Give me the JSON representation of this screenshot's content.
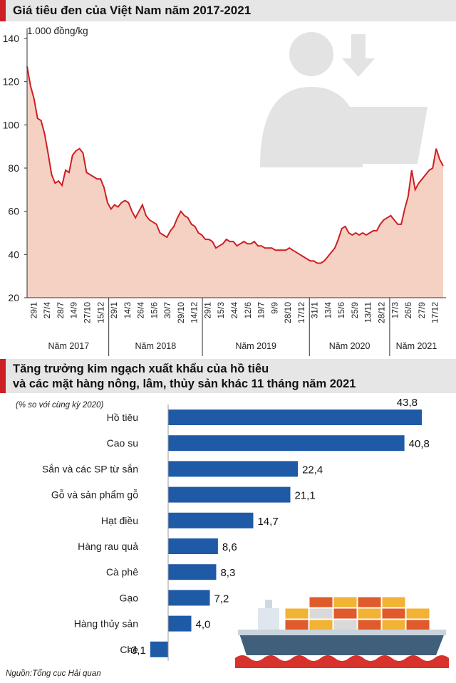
{
  "chart_data": [
    {
      "type": "area",
      "title": "Giá tiêu đen của Việt Nam năm 2017-2021",
      "ylabel": "1.000 đồng/kg",
      "ylim": [
        20,
        140
      ],
      "yticks": [
        20,
        40,
        60,
        80,
        100,
        120,
        140
      ],
      "grid": false,
      "x_tick_labels": [
        "29/1",
        "27/4",
        "28/7",
        "14/9",
        "27/10",
        "15/12",
        "29/1",
        "14/3",
        "26/4",
        "15/6",
        "30/7",
        "29/10",
        "14/12",
        "29/1",
        "15/3",
        "24/4",
        "12/6",
        "19/7",
        "9/9",
        "28/10",
        "17/12",
        "31/1",
        "13/4",
        "15/6",
        "25/9",
        "13/11",
        "28/12",
        "17/3",
        "26/6",
        "27/9",
        "17/12"
      ],
      "years": [
        "Năm 2017",
        "Năm 2018",
        "Năm 2019",
        "Năm 2020",
        "Năm 2021"
      ],
      "values": [
        127,
        118,
        112,
        103,
        102,
        96,
        87,
        77,
        73,
        74,
        72,
        79,
        78,
        86,
        88,
        89,
        87,
        78,
        77,
        76,
        75,
        75,
        71,
        64,
        61,
        63,
        62,
        64,
        65,
        64,
        60,
        57,
        60,
        63,
        58,
        56,
        55,
        54,
        50,
        49,
        48,
        51,
        53,
        57,
        60,
        58,
        57,
        54,
        53,
        50,
        49,
        47,
        47,
        46,
        43,
        44,
        45,
        47,
        46,
        46,
        44,
        45,
        46,
        45,
        45,
        46,
        44,
        44,
        43,
        43,
        43,
        42,
        42,
        42,
        42,
        43,
        42,
        41,
        40,
        39,
        38,
        37,
        37,
        36,
        36,
        37,
        39,
        41,
        43,
        47,
        52,
        53,
        50,
        49,
        50,
        49,
        50,
        49,
        50,
        51,
        51,
        54,
        56,
        57,
        58,
        56,
        54,
        54,
        61,
        67,
        79,
        70,
        73,
        75,
        77,
        79,
        80,
        89,
        84,
        81
      ]
    },
    {
      "type": "bar",
      "title": "Tăng trưởng kim ngạch xuất khẩu của hồ tiêu và các mặt hàng nông, lâm, thủy sản khác 11 tháng năm 2021",
      "title_lines": [
        "Tăng trưởng kim ngạch xuất khẩu của hồ tiêu",
        "và các mặt hàng nông, lâm, thủy sản khác 11 tháng năm 2021"
      ],
      "subtitle": "(% so với cùng kỳ 2020)",
      "orientation": "horizontal",
      "categories": [
        "Hồ tiêu",
        "Cao su",
        "Sắn và các SP từ sắn",
        "Gỗ và sản phẩm gỗ",
        "Hạt điều",
        "Hàng rau quả",
        "Cà phê",
        "Gạo",
        "Hàng thủy sản",
        "Chè"
      ],
      "values": [
        43.8,
        40.8,
        22.4,
        21.1,
        14.7,
        8.6,
        8.3,
        7.2,
        4.0,
        -3.1
      ],
      "value_labels": [
        "43,8",
        "40,8",
        "22,4",
        "21,1",
        "14,7",
        "8,6",
        "8,3",
        "7,2",
        "4,0",
        "-3,1"
      ],
      "bar_color": "#1f5aa6",
      "source": "Nguồn:Tổng cục Hải quan"
    }
  ]
}
